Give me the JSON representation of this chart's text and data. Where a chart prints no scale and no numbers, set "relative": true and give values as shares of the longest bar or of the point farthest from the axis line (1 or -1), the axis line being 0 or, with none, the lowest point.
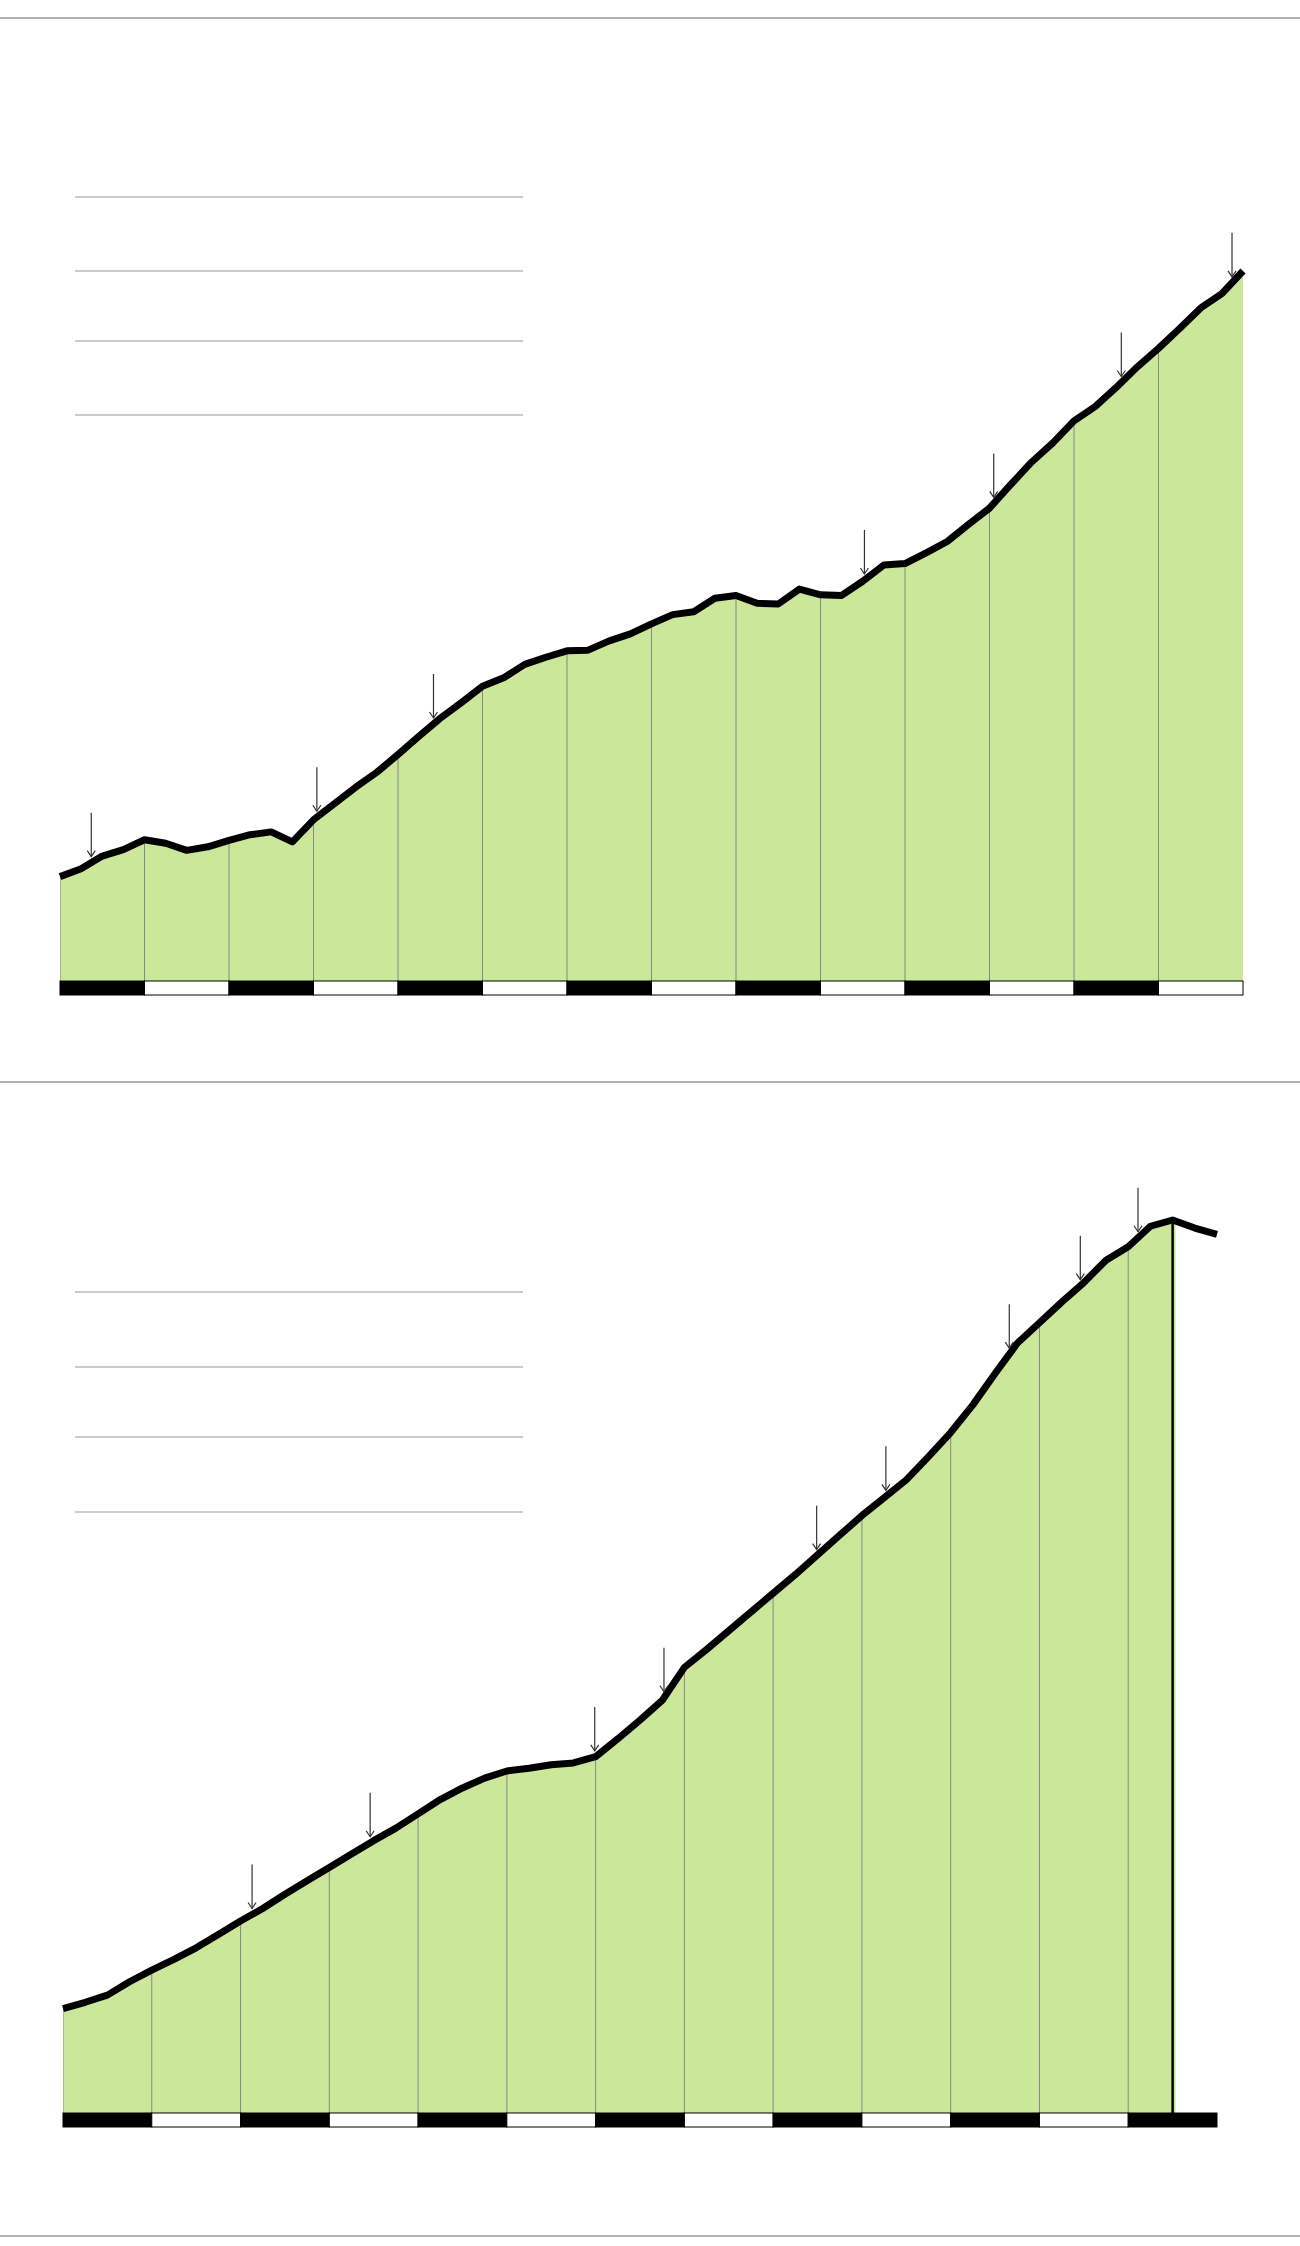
{
  "chart_data": [
    {
      "type": "area",
      "relative": true,
      "grid": "x",
      "categories": [
        null,
        null,
        null,
        null,
        null,
        null,
        null,
        null,
        null,
        null,
        null,
        null,
        null,
        null,
        null,
        null,
        null,
        null,
        null,
        null,
        null,
        null,
        null,
        null,
        null,
        null,
        null,
        null,
        null,
        null,
        null,
        null,
        null,
        null,
        null,
        null,
        null,
        null,
        null,
        null,
        null,
        null,
        null,
        null,
        null,
        null,
        null,
        null,
        null,
        null,
        null,
        null,
        null,
        null,
        null,
        null,
        null
      ],
      "series": [
        {
          "color": "#cbe79a",
          "values": [
            0.147,
            0.158,
            0.176,
            0.185,
            0.199,
            0.194,
            0.184,
            0.189,
            0.198,
            0.206,
            0.21,
            0.196,
            0.227,
            0.25,
            0.273,
            0.294,
            0.319,
            0.345,
            0.37,
            0.392,
            0.415,
            0.427,
            0.446,
            0.456,
            0.465,
            0.466,
            0.479,
            0.489,
            0.503,
            0.516,
            0.52,
            0.539,
            0.543,
            0.532,
            0.531,
            0.552,
            0.544,
            0.543,
            0.563,
            0.586,
            0.588,
            0.603,
            0.619,
            0.643,
            0.666,
            0.699,
            0.731,
            0.758,
            0.789,
            0.809,
            0.836,
            0.865,
            0.891,
            0.919,
            0.948,
            0.968,
            1.0
          ]
        }
      ]
    },
    {
      "type": "area",
      "relative": true,
      "grid": "x",
      "categories": [
        null,
        null,
        null,
        null,
        null,
        null,
        null,
        null,
        null,
        null,
        null,
        null,
        null,
        null,
        null,
        null,
        null,
        null,
        null,
        null,
        null,
        null,
        null,
        null,
        null,
        null,
        null,
        null,
        null,
        null,
        null,
        null,
        null,
        null,
        null,
        null,
        null,
        null,
        null,
        null,
        null,
        null,
        null,
        null,
        null,
        null,
        null,
        null,
        null,
        null,
        null,
        null,
        null
      ],
      "series": [
        {
          "color": "#cbe79a",
          "values": [
            0.117,
            0.124,
            0.132,
            0.147,
            0.16,
            0.172,
            0.185,
            0.2,
            0.215,
            0.229,
            0.245,
            0.26,
            0.275,
            0.29,
            0.305,
            0.319,
            0.335,
            0.351,
            0.364,
            0.375,
            0.383,
            0.386,
            0.39,
            0.392,
            0.399,
            0.419,
            0.44,
            0.462,
            0.499,
            0.519,
            0.54,
            0.561,
            0.582,
            0.603,
            0.625,
            0.647,
            0.669,
            0.689,
            0.709,
            0.735,
            0.762,
            0.793,
            0.828,
            0.862,
            0.885,
            0.908,
            0.93,
            0.955,
            0.97,
            0.993,
            1.0,
            0.991,
            0.984
          ]
        }
      ]
    }
  ]
}
